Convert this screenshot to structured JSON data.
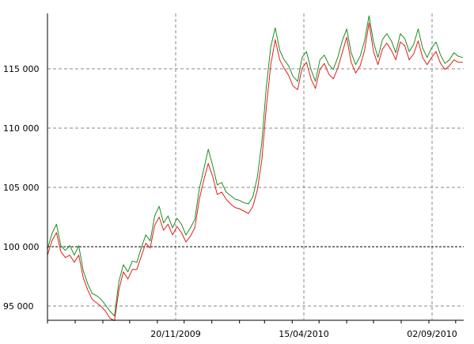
{
  "chart_data": {
    "type": "line",
    "title": "",
    "xlabel": "",
    "ylabel": "",
    "ylim": [
      93800,
      119500
    ],
    "xlim": [
      "2009-07-01",
      "2010-10-10"
    ],
    "grid": true,
    "legend": "none",
    "x_ticks": [
      {
        "date": "2009-11-20",
        "label": "20/11/2009"
      },
      {
        "date": "2010-04-15",
        "label": "15/04/2010"
      },
      {
        "date": "2010-09-02",
        "label": "02/09/2010"
      }
    ],
    "y_ticks": [
      {
        "value": 95000,
        "label": "95 000"
      },
      {
        "value": 100000,
        "label": "100 000"
      },
      {
        "value": 105000,
        "label": "105 000"
      },
      {
        "value": 110000,
        "label": "110 000"
      },
      {
        "value": 115000,
        "label": "115 000"
      }
    ],
    "reference_line": 100000,
    "series": [
      {
        "color": "#228b22",
        "x": [
          "2009-07-01",
          "2009-07-06",
          "2009-07-11",
          "2009-07-16",
          "2009-07-21",
          "2009-07-26",
          "2009-07-31",
          "2009-08-05",
          "2009-08-10",
          "2009-08-15",
          "2009-08-20",
          "2009-08-25",
          "2009-08-30",
          "2009-09-04",
          "2009-09-09",
          "2009-09-14",
          "2009-09-19",
          "2009-09-24",
          "2009-09-29",
          "2009-10-04",
          "2009-10-09",
          "2009-10-14",
          "2009-10-19",
          "2009-10-24",
          "2009-10-29",
          "2009-11-03",
          "2009-11-08",
          "2009-11-13",
          "2009-11-18",
          "2009-11-23",
          "2009-11-28",
          "2009-12-03",
          "2009-12-08",
          "2009-12-13",
          "2009-12-18",
          "2009-12-23",
          "2009-12-28",
          "2010-01-02",
          "2010-01-07",
          "2010-01-12",
          "2010-01-17",
          "2010-01-22",
          "2010-01-27",
          "2010-02-01",
          "2010-02-06",
          "2010-02-11",
          "2010-02-16",
          "2010-02-21",
          "2010-02-26",
          "2010-03-03",
          "2010-03-08",
          "2010-03-13",
          "2010-03-18",
          "2010-03-23",
          "2010-03-28",
          "2010-04-02",
          "2010-04-07",
          "2010-04-12",
          "2010-04-17",
          "2010-04-22",
          "2010-04-27",
          "2010-05-02",
          "2010-05-07",
          "2010-05-12",
          "2010-05-17",
          "2010-05-22",
          "2010-05-27",
          "2010-06-01",
          "2010-06-06",
          "2010-06-11",
          "2010-06-16",
          "2010-06-21",
          "2010-06-26",
          "2010-07-01",
          "2010-07-06",
          "2010-07-11",
          "2010-07-16",
          "2010-07-21",
          "2010-07-26",
          "2010-07-31",
          "2010-08-05",
          "2010-08-10",
          "2010-08-15",
          "2010-08-20",
          "2010-08-25",
          "2010-08-30",
          "2010-09-04",
          "2010-09-09",
          "2010-09-14",
          "2010-09-19",
          "2010-09-24",
          "2010-09-29",
          "2010-10-04",
          "2010-10-09"
        ],
        "values": [
          99700,
          101000,
          101800,
          100000,
          99600,
          100000,
          99200,
          100000,
          97900,
          96800,
          96000,
          95800,
          95500,
          95000,
          94500,
          94100,
          97000,
          98400,
          97800,
          98700,
          98600,
          99800,
          100900,
          100400,
          102500,
          103300,
          101900,
          102500,
          101500,
          102300,
          101800,
          100900,
          101500,
          102200,
          104800,
          106400,
          108100,
          106700,
          105100,
          105300,
          104500,
          104200,
          103900,
          103800,
          103600,
          103500,
          104100,
          105800,
          108700,
          113300,
          116700,
          118300,
          116400,
          115600,
          115100,
          114200,
          113800,
          115800,
          116300,
          114800,
          113800,
          115600,
          116000,
          115200,
          114800,
          115800,
          117200,
          118200,
          116200,
          115200,
          115900,
          117200,
          119300,
          117100,
          115800,
          117300,
          117800,
          117200,
          116200,
          117800,
          117400,
          116300,
          116900,
          118200,
          116600,
          115800,
          116600,
          117100,
          116000,
          115300,
          115600,
          116200,
          115900,
          115800
        ]
      },
      {
        "color": "#e0201b",
        "x": [
          "2009-07-01",
          "2009-07-06",
          "2009-07-11",
          "2009-07-16",
          "2009-07-21",
          "2009-07-26",
          "2009-07-31",
          "2009-08-05",
          "2009-08-10",
          "2009-08-15",
          "2009-08-20",
          "2009-08-25",
          "2009-08-30",
          "2009-09-04",
          "2009-09-09",
          "2009-09-14",
          "2009-09-19",
          "2009-09-24",
          "2009-09-29",
          "2009-10-04",
          "2009-10-09",
          "2009-10-14",
          "2009-10-19",
          "2009-10-24",
          "2009-10-29",
          "2009-11-03",
          "2009-11-08",
          "2009-11-13",
          "2009-11-18",
          "2009-11-23",
          "2009-11-28",
          "2009-12-03",
          "2009-12-08",
          "2009-12-13",
          "2009-12-18",
          "2009-12-23",
          "2009-12-28",
          "2010-01-02",
          "2010-01-07",
          "2010-01-12",
          "2010-01-17",
          "2010-01-22",
          "2010-01-27",
          "2010-02-01",
          "2010-02-06",
          "2010-02-11",
          "2010-02-16",
          "2010-02-21",
          "2010-02-26",
          "2010-03-03",
          "2010-03-08",
          "2010-03-13",
          "2010-03-18",
          "2010-03-23",
          "2010-03-28",
          "2010-04-02",
          "2010-04-07",
          "2010-04-12",
          "2010-04-17",
          "2010-04-22",
          "2010-04-27",
          "2010-05-02",
          "2010-05-07",
          "2010-05-12",
          "2010-05-17",
          "2010-05-22",
          "2010-05-27",
          "2010-06-01",
          "2010-06-06",
          "2010-06-11",
          "2010-06-16",
          "2010-06-21",
          "2010-06-26",
          "2010-07-01",
          "2010-07-06",
          "2010-07-11",
          "2010-07-16",
          "2010-07-21",
          "2010-07-26",
          "2010-07-31",
          "2010-08-05",
          "2010-08-10",
          "2010-08-15",
          "2010-08-20",
          "2010-08-25",
          "2010-08-30",
          "2010-09-04",
          "2010-09-09",
          "2010-09-14",
          "2010-09-19",
          "2010-09-24",
          "2010-09-29",
          "2010-10-04",
          "2010-10-09"
        ],
        "values": [
          99200,
          100400,
          101100,
          99500,
          99000,
          99200,
          98600,
          99200,
          97300,
          96300,
          95500,
          95200,
          94900,
          94500,
          93900,
          93700,
          96300,
          97800,
          97200,
          98000,
          98000,
          99100,
          100200,
          99800,
          101700,
          102400,
          101300,
          101800,
          100900,
          101600,
          101100,
          100300,
          100800,
          101500,
          103900,
          105500,
          106900,
          105800,
          104300,
          104500,
          103900,
          103500,
          103200,
          103100,
          102900,
          102700,
          103300,
          104700,
          107200,
          111600,
          115200,
          117300,
          115600,
          114900,
          114300,
          113400,
          113100,
          114900,
          115400,
          114000,
          113200,
          114800,
          115300,
          114400,
          114000,
          114900,
          116200,
          117500,
          115400,
          114500,
          115100,
          116400,
          118700,
          116300,
          115200,
          116500,
          117000,
          116400,
          115600,
          117100,
          116800,
          115600,
          116100,
          117200,
          115800,
          115200,
          115800,
          116300,
          115300,
          114800,
          115100,
          115600,
          115400,
          115400
        ]
      }
    ]
  }
}
